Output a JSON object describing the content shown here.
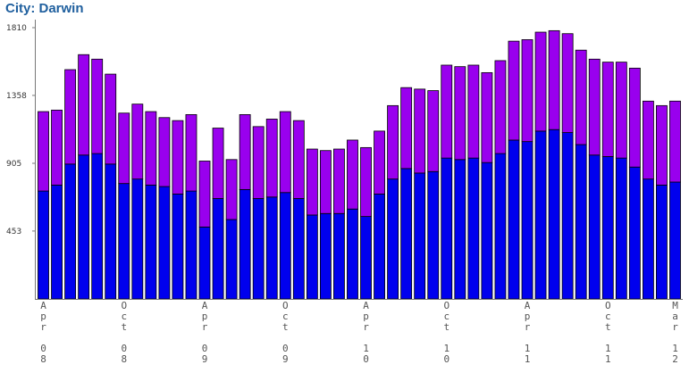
{
  "title": "City: Darwin",
  "chart_data": {
    "type": "bar",
    "stacked": true,
    "title": "City: Darwin",
    "ylim": [
      0,
      1810
    ],
    "yticks": [
      453,
      905,
      1358,
      1810
    ],
    "ytick_labels": [
      "453",
      "905",
      "1358",
      "1810"
    ],
    "grid": false,
    "categories": [
      "Apr 08",
      "May 08",
      "Jun 08",
      "Jul 08",
      "Aug 08",
      "Sep 08",
      "Oct 08",
      "Nov 08",
      "Dec 08",
      "Jan 09",
      "Feb 09",
      "Mar 09",
      "Apr 09",
      "May 09",
      "Jun 09",
      "Jul 09",
      "Aug 09",
      "Sep 09",
      "Oct 09",
      "Nov 09",
      "Dec 09",
      "Jan 10",
      "Feb 10",
      "Mar 10",
      "Apr 10",
      "May 10",
      "Jun 10",
      "Jul 10",
      "Aug 10",
      "Sep 10",
      "Oct 10",
      "Nov 10",
      "Dec 10",
      "Jan 11",
      "Feb 11",
      "Mar 11",
      "Apr 11",
      "May 11",
      "Jun 11",
      "Jul 11",
      "Aug 11",
      "Sep 11",
      "Oct 11",
      "Nov 11",
      "Dec 11",
      "Jan 12",
      "Feb 12",
      "Mar 12"
    ],
    "x_labels": [
      {
        "index": 0,
        "text": "Apr 08"
      },
      {
        "index": 6,
        "text": "Oct 08"
      },
      {
        "index": 12,
        "text": "Apr 09"
      },
      {
        "index": 18,
        "text": "Oct 09"
      },
      {
        "index": 24,
        "text": "Apr 10"
      },
      {
        "index": 30,
        "text": "Oct 10"
      },
      {
        "index": 36,
        "text": "Apr 11"
      },
      {
        "index": 42,
        "text": "Oct 11"
      },
      {
        "index": 47,
        "text": "Mar 12"
      }
    ],
    "series": [
      {
        "color": "#0000ee",
        "values": [
          720,
          760,
          900,
          960,
          970,
          900,
          770,
          800,
          760,
          750,
          700,
          720,
          480,
          670,
          530,
          730,
          670,
          680,
          710,
          670,
          560,
          570,
          570,
          600,
          550,
          700,
          800,
          870,
          840,
          850,
          940,
          930,
          940,
          910,
          970,
          1060,
          1050,
          1120,
          1130,
          1110,
          1030,
          960,
          950,
          940,
          880,
          800,
          760,
          780
        ]
      },
      {
        "color": "#9900ee",
        "values": [
          530,
          500,
          630,
          670,
          630,
          600,
          470,
          500,
          490,
          460,
          490,
          510,
          440,
          470,
          400,
          500,
          480,
          520,
          540,
          520,
          440,
          420,
          430,
          460,
          460,
          420,
          490,
          540,
          560,
          540,
          620,
          620,
          620,
          600,
          620,
          660,
          680,
          660,
          660,
          660,
          630,
          640,
          630,
          640,
          660,
          520,
          530,
          540
        ]
      }
    ]
  }
}
